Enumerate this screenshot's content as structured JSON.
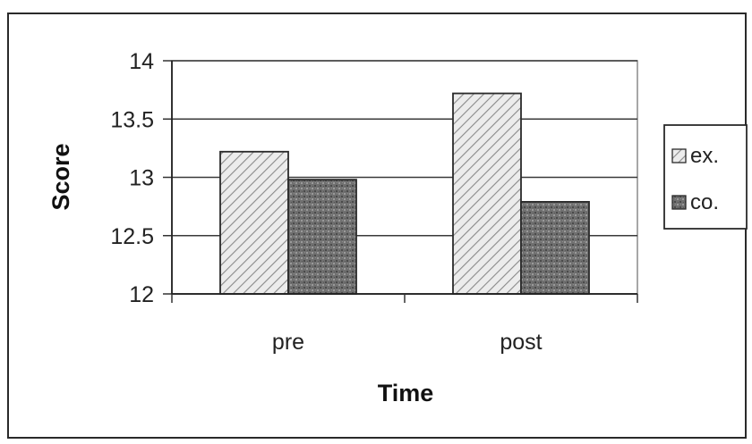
{
  "chart_data": {
    "type": "bar",
    "title": "",
    "xlabel": "Time",
    "ylabel": "Score",
    "categories": [
      "pre",
      "post"
    ],
    "series": [
      {
        "name": "ex.",
        "values": [
          13.22,
          13.72
        ],
        "color": "#d8d8d8",
        "pattern": "diagonal-hatch"
      },
      {
        "name": "co.",
        "values": [
          12.98,
          12.79
        ],
        "color": "#6a6a6a",
        "pattern": "speckle"
      }
    ],
    "ylim": [
      12,
      14
    ],
    "yticks": [
      "12",
      "12.5",
      "13",
      "13.5",
      "14"
    ],
    "grid": true,
    "legend": "right"
  }
}
